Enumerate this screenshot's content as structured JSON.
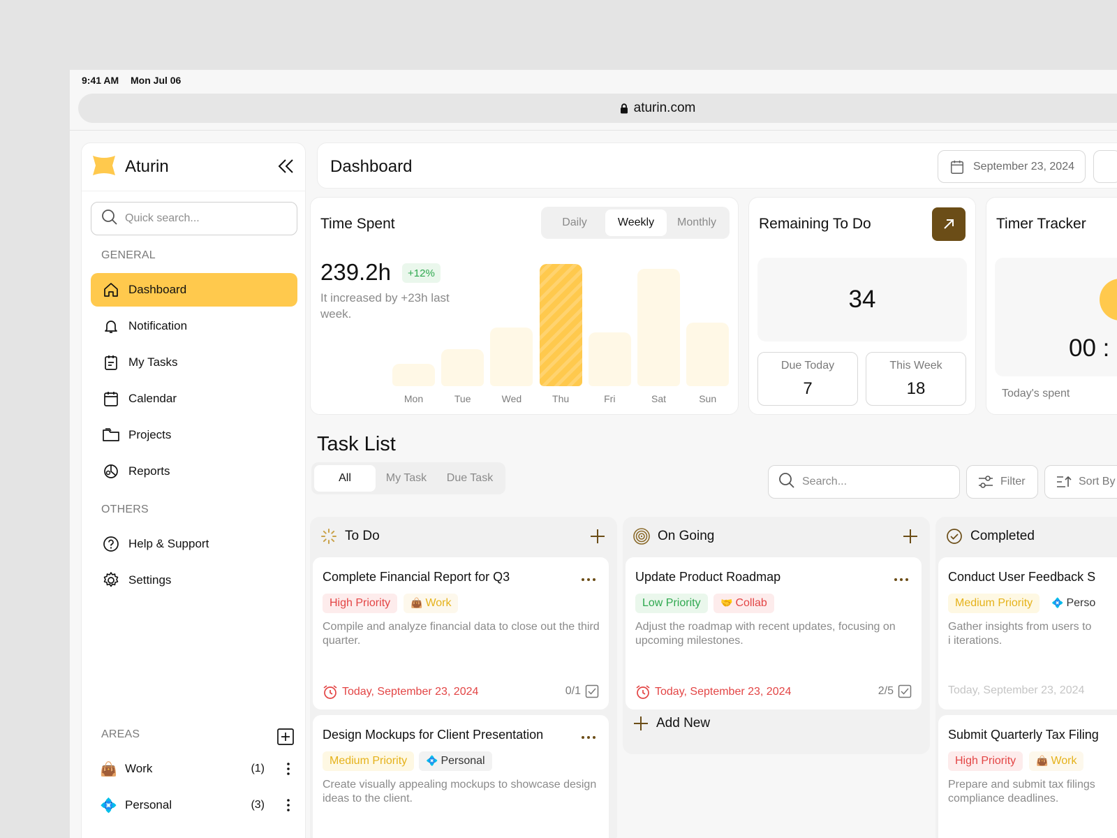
{
  "status": {
    "time": "9:41 AM",
    "date": "Mon Jul 06"
  },
  "browser": {
    "url": "aturin.com"
  },
  "sidebar": {
    "brand": "Aturin",
    "search_placeholder": "Quick search...",
    "general_label": "GENERAL",
    "nav": [
      {
        "label": "Dashboard",
        "icon": "home-icon"
      },
      {
        "label": "Notification",
        "icon": "bell-icon"
      },
      {
        "label": "My Tasks",
        "icon": "clipboard-icon"
      },
      {
        "label": "Calendar",
        "icon": "calendar-icon"
      },
      {
        "label": "Projects",
        "icon": "folder-icon"
      },
      {
        "label": "Reports",
        "icon": "pie-chart-icon"
      }
    ],
    "others_label": "OTHERS",
    "others": [
      {
        "label": "Help & Support",
        "icon": "help-icon"
      },
      {
        "label": "Settings",
        "icon": "gear-icon"
      }
    ],
    "areas_label": "AREAS",
    "areas": [
      {
        "emoji": "👜",
        "label": "Work",
        "count": "(1)"
      },
      {
        "emoji": "💠",
        "label": "Personal",
        "count": "(3)"
      }
    ]
  },
  "header": {
    "title": "Dashboard",
    "date": "September 23, 2024"
  },
  "time_spent": {
    "title": "Time Spent",
    "tabs": [
      "Daily",
      "Weekly",
      "Monthly"
    ],
    "selected_tab": "Weekly",
    "total": "239.2h",
    "change": "+12%",
    "note": "It increased by +23h last week."
  },
  "chart_data": {
    "type": "bar",
    "categories": [
      "Mon",
      "Tue",
      "Wed",
      "Thu",
      "Fri",
      "Sat",
      "Sun"
    ],
    "values": [
      18,
      30,
      48,
      100,
      44,
      96,
      52
    ],
    "highlight": "Thu",
    "ylim": [
      0,
      100
    ],
    "grid": false
  },
  "remaining": {
    "title": "Remaining To Do",
    "total": "34",
    "due_today_label": "Due Today",
    "due_today": "7",
    "this_week_label": "This Week",
    "this_week": "18"
  },
  "timer": {
    "title": "Timer Tracker",
    "value": "00 :",
    "note": "Today's spent"
  },
  "task_list": {
    "title": "Task List",
    "tabs": [
      "All",
      "My Task",
      "Due Task"
    ],
    "selected_tab": "All",
    "search_placeholder": "Search...",
    "filter_label": "Filter",
    "sort_label": "Sort By"
  },
  "columns": [
    {
      "title": "To Do",
      "tasks": [
        {
          "title": "Complete Financial Report for Q3",
          "priority": "High Priority",
          "area_emoji": "👜",
          "area": "Work",
          "desc": "Compile and analyze financial data to close out the third quarter.",
          "due": "Today, September 23, 2024",
          "progress": "0/1"
        },
        {
          "title": "Design Mockups for Client Presentation",
          "priority": "Medium Priority",
          "area_emoji": "💠",
          "area": "Personal",
          "desc": "Create visually appealing mockups to showcase design ideas to the client."
        }
      ]
    },
    {
      "title": "On Going",
      "tasks": [
        {
          "title": "Update Product Roadmap",
          "priority": "Low Priority",
          "area_emoji": "🤝",
          "area": "Collab",
          "desc": "Adjust the roadmap with recent updates, focusing on upcoming milestones.",
          "due": "Today, September 23, 2024",
          "progress": "2/5"
        }
      ],
      "add_new": "Add New"
    },
    {
      "title": "Completed",
      "tasks": [
        {
          "title": "Conduct User Feedback S",
          "priority": "Medium Priority",
          "area_emoji": "💠",
          "area": "Perso",
          "desc": "Gather insights from users to i iterations.",
          "due": "Today, September 23, 2024"
        },
        {
          "title": "Submit Quarterly Tax Filing",
          "priority": "High Priority",
          "area_emoji": "👜",
          "area": "Work",
          "desc": "Prepare and submit tax filings compliance deadlines."
        }
      ]
    }
  ],
  "colors": {
    "accent": "#ffc94d",
    "brown": "#6b4d17",
    "red": "#e34545",
    "green": "#2fa84f",
    "yellow": "#e5b21b"
  }
}
